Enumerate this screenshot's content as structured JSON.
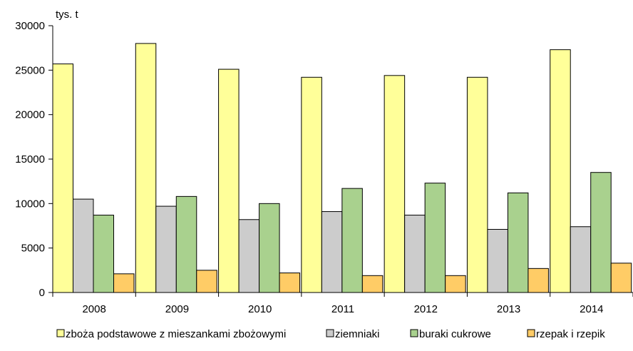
{
  "chart_data": {
    "type": "bar",
    "ylabel": "tys. t",
    "ylim": [
      0,
      30000
    ],
    "yticks": [
      0,
      5000,
      10000,
      15000,
      20000,
      25000,
      30000
    ],
    "categories": [
      "2008",
      "2009",
      "2010",
      "2011",
      "2012",
      "2013",
      "2014"
    ],
    "series": [
      {
        "name": "zboża podstawowe z mieszankami zbożowymi",
        "color": "#FFFF99",
        "values": [
          25700,
          28000,
          25100,
          24200,
          24400,
          24200,
          27300
        ]
      },
      {
        "name": "ziemniaki",
        "color": "#CCCCCC",
        "values": [
          10500,
          9700,
          8200,
          9100,
          8700,
          7100,
          7400
        ]
      },
      {
        "name": "buraki cukrowe",
        "color": "#A9D18E",
        "values": [
          8700,
          10800,
          10000,
          11700,
          12300,
          11200,
          13500
        ]
      },
      {
        "name": "rzepak i rzepik",
        "color": "#FFCC66",
        "values": [
          2100,
          2500,
          2200,
          1900,
          1900,
          2700,
          3300
        ]
      }
    ],
    "legend_position": "bottom",
    "grid": false
  }
}
